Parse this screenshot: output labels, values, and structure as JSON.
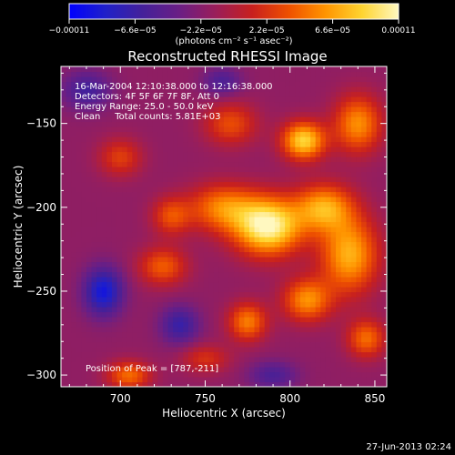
{
  "chart_data": {
    "type": "heatmap",
    "title": "Reconstructed RHESSI Image",
    "xlabel": "Heliocentric X (arcsec)",
    "ylabel": "Heliocentric Y (arcsec)",
    "xlim": [
      665,
      857
    ],
    "ylim": [
      -307,
      -116
    ],
    "x_ticks": [
      {
        "value": 700,
        "label": "700"
      },
      {
        "value": 750,
        "label": "750"
      },
      {
        "value": 800,
        "label": "800"
      },
      {
        "value": 850,
        "label": "850"
      }
    ],
    "y_ticks": [
      {
        "value": -150,
        "label": "−150"
      },
      {
        "value": -200,
        "label": "−200"
      },
      {
        "value": -250,
        "label": "−250"
      },
      {
        "value": -300,
        "label": "−300"
      }
    ],
    "colorbar": {
      "range": [
        -0.00011,
        0.00011
      ],
      "tick_labels": [
        "−0.00011",
        "−6.6e−05",
        "−2.2e−05",
        "2.2e−05",
        "6.6e−05",
        "0.00011"
      ],
      "units_text": "(photons cm⁻² s⁻¹ asec⁻²)",
      "colormap": [
        "#0000ff",
        "#2020c8",
        "#44209a",
        "#6a1f85",
        "#9a1e5a",
        "#c8201e",
        "#ee5000",
        "#ff9400",
        "#ffd430",
        "#fff8c0"
      ]
    },
    "annotations": [
      "16-Mar-2004 12:10:38.000 to 12:16:38.000",
      "Detectors: 4F 5F 6F 7F 8F, Att 0",
      "Energy Range: 25.0 - 50.0 keV",
      "Clean     Total counts: 5.81E+03"
    ],
    "peak_label": "Position of Peak = [787,-211]",
    "peak": {
      "x": 787,
      "y": -211
    },
    "sources": [
      {
        "x": 787,
        "y": -211,
        "sx": 14,
        "sy": 12,
        "amp": 1.0
      },
      {
        "x": 808,
        "y": -160,
        "sx": 9,
        "sy": 8,
        "amp": 0.82
      },
      {
        "x": 835,
        "y": -228,
        "sx": 12,
        "sy": 16,
        "amp": 0.7
      },
      {
        "x": 760,
        "y": -200,
        "sx": 14,
        "sy": 10,
        "amp": 0.55
      },
      {
        "x": 810,
        "y": -255,
        "sx": 10,
        "sy": 9,
        "amp": 0.6
      },
      {
        "x": 765,
        "y": -150,
        "sx": 11,
        "sy": 9,
        "amp": 0.4
      },
      {
        "x": 840,
        "y": -150,
        "sx": 10,
        "sy": 12,
        "amp": 0.6
      },
      {
        "x": 725,
        "y": -235,
        "sx": 10,
        "sy": 8,
        "amp": 0.45
      },
      {
        "x": 775,
        "y": -268,
        "sx": 8,
        "sy": 8,
        "amp": 0.55
      },
      {
        "x": 700,
        "y": -170,
        "sx": 9,
        "sy": 8,
        "amp": 0.35
      },
      {
        "x": 705,
        "y": -300,
        "sx": 9,
        "sy": 6,
        "amp": 0.5
      },
      {
        "x": 845,
        "y": -278,
        "sx": 8,
        "sy": 8,
        "amp": 0.5
      },
      {
        "x": 730,
        "y": -205,
        "sx": 8,
        "sy": 8,
        "amp": 0.4
      },
      {
        "x": 820,
        "y": -200,
        "sx": 12,
        "sy": 10,
        "amp": 0.65
      },
      {
        "x": 750,
        "y": -290,
        "sx": 10,
        "sy": 6,
        "amp": 0.3
      },
      {
        "x": 690,
        "y": -250,
        "sx": 8,
        "sy": 10,
        "amp": -0.6
      },
      {
        "x": 680,
        "y": -130,
        "sx": 10,
        "sy": 8,
        "amp": -0.35
      },
      {
        "x": 735,
        "y": -270,
        "sx": 8,
        "sy": 8,
        "amp": -0.4
      },
      {
        "x": 790,
        "y": -300,
        "sx": 10,
        "sy": 6,
        "amp": -0.3
      },
      {
        "x": 760,
        "y": -125,
        "sx": 8,
        "sy": 6,
        "amp": -0.3
      }
    ]
  },
  "footer": {
    "timestamp": "27-Jun-2013 02:24"
  }
}
